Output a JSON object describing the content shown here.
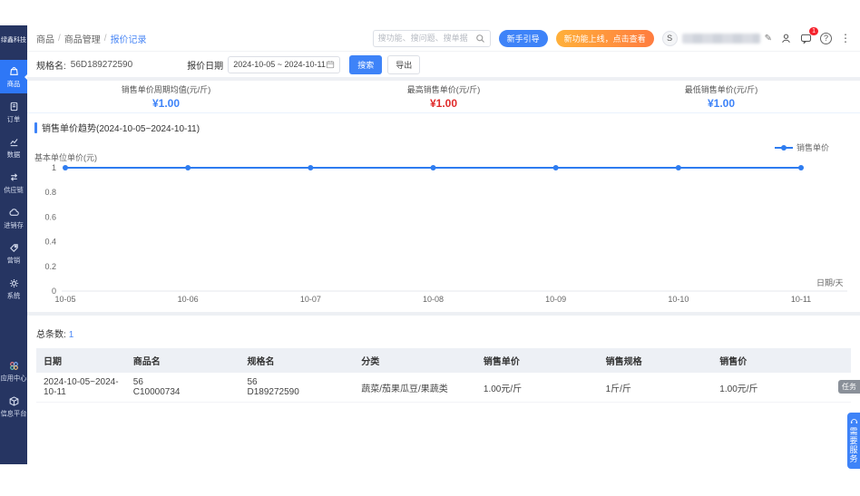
{
  "brand": {
    "logo_text": "绿鑫科技"
  },
  "sidebar": {
    "items": [
      {
        "icon": "bag-icon",
        "label": "商品",
        "active": true
      },
      {
        "icon": "order-icon",
        "label": "订单",
        "active": false
      },
      {
        "icon": "data-icon",
        "label": "数据",
        "active": false
      },
      {
        "icon": "supply-icon",
        "label": "供应链",
        "active": false
      },
      {
        "icon": "inventory-icon",
        "label": "进销存",
        "active": false
      },
      {
        "icon": "marketing-icon",
        "label": "营销",
        "active": false
      },
      {
        "icon": "system-icon",
        "label": "系统",
        "active": false
      }
    ],
    "bottom_items": [
      {
        "icon": "apps-icon",
        "label": "应用中心",
        "active": false
      },
      {
        "icon": "platform-icon",
        "label": "信息平台",
        "active": false
      }
    ]
  },
  "topbar": {
    "breadcrumb": [
      "商品",
      "商品管理",
      "报价记录"
    ],
    "search_placeholder": "搜功能、搜问题、搜单据",
    "guide_button": "新手引导",
    "promo_button": "新功能上线，点击查看",
    "avatar_letter": "S",
    "message_badge": "1",
    "help_glyph": "?",
    "more_glyph": "⋮",
    "edit_glyph": "✎"
  },
  "filter": {
    "spec_label": "规格名:",
    "spec_value": "56D189272590",
    "date_label": "报价日期",
    "date_value": "2024-10-05 ~ 2024-10-11",
    "search_button": "搜索",
    "export_button": "导出"
  },
  "stats": {
    "items": [
      {
        "label": "销售单价周期均值(元/斤)",
        "value": "¥1.00",
        "color": "#3e83f8"
      },
      {
        "label": "最高销售单价(元/斤)",
        "value": "¥1.00",
        "color": "#e02b2b"
      },
      {
        "label": "最低销售单价(元/斤)",
        "value": "¥1.00",
        "color": "#3e83f8"
      }
    ]
  },
  "chart_data": {
    "type": "line",
    "title": "销售单价趋势(2024-10-05~2024-10-11)",
    "x": [
      "10-05",
      "10-06",
      "10-07",
      "10-08",
      "10-09",
      "10-10",
      "10-11"
    ],
    "series": [
      {
        "name": "销售单价",
        "values": [
          1.0,
          1.0,
          1.0,
          1.0,
          1.0,
          1.0,
          1.0
        ]
      }
    ],
    "ylabel": "基本单位单价(元)",
    "xlabel": "日期/天",
    "ylim": [
      0,
      1
    ],
    "y_ticks": [
      0,
      0.2,
      0.4,
      0.6,
      0.8,
      1
    ],
    "grid": false,
    "legend_position": "top-right",
    "line_color": "#2e7cf0"
  },
  "summary": {
    "total_label": "总条数:",
    "total_value": "1"
  },
  "table": {
    "headers": [
      "日期",
      "商品名",
      "规格名",
      "分类",
      "销售单价",
      "销售规格",
      "销售价"
    ],
    "rows": [
      [
        "2024-10-05~2024-10-11",
        "56\nC10000734",
        "56\nD189272590",
        "蔬菜/茄果瓜豆/果蔬类",
        "1.00元/斤",
        "1斤/斤",
        "1.00元/斤"
      ]
    ]
  },
  "floaters": {
    "task_tab": "任务",
    "service_button": "需要服务"
  }
}
